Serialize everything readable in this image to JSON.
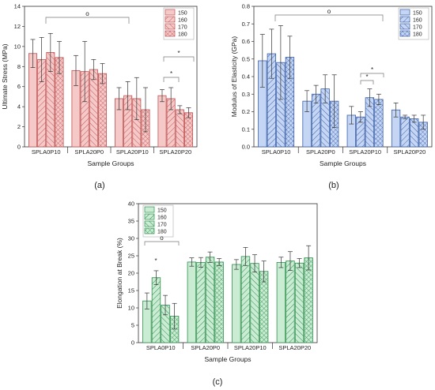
{
  "panel_labels": [
    "(a)",
    "(b)",
    "(c)"
  ],
  "legend_labels": [
    "150",
    "160",
    "170",
    "180"
  ],
  "colors": {
    "a_fill": "#f6c9c9",
    "a_edge": "#c05454",
    "b_fill": "#c5d6f4",
    "b_edge": "#3a5fa8",
    "c_fill": "#c9ecd3",
    "c_edge": "#2f8f4e"
  },
  "chart_data": [
    {
      "type": "bar",
      "panel": "(a)",
      "categories": [
        "SPLA0P10",
        "SPLA20P0",
        "SPLA20P10",
        "SPLA20P20"
      ],
      "xlabel": "Sample Groups",
      "ylabel": "Ultimate Stress (MPa)",
      "ylim": [
        0,
        14
      ],
      "yticks": [
        0,
        2,
        4,
        6,
        8,
        10,
        12,
        14
      ],
      "legend_position": "top-right",
      "series": [
        {
          "name": "150",
          "values": [
            9.3,
            7.6,
            4.8,
            5.1
          ],
          "errors": [
            1.4,
            1.5,
            1.1,
            0.6
          ]
        },
        {
          "name": "160",
          "values": [
            8.7,
            7.5,
            5.1,
            4.8
          ],
          "errors": [
            2.2,
            3.0,
            1.4,
            1.1
          ]
        },
        {
          "name": "170",
          "values": [
            9.4,
            7.7,
            4.8,
            3.7
          ],
          "errors": [
            1.9,
            1.0,
            2.1,
            0.4
          ]
        },
        {
          "name": "180",
          "values": [
            8.9,
            7.3,
            3.7,
            3.4
          ],
          "errors": [
            1.6,
            1.0,
            2.2,
            0.5
          ]
        }
      ],
      "annotations": [
        "o",
        "*",
        "*"
      ]
    },
    {
      "type": "bar",
      "panel": "(b)",
      "categories": [
        "SPLA0P10",
        "SPLA20P0",
        "SPLA20P10",
        "SPLA20P20"
      ],
      "xlabel": "Sample Groups",
      "ylabel": "Modulus of Elasticity (GPa)",
      "ylim": [
        0,
        0.8
      ],
      "yticks": [
        0,
        0.1,
        0.2,
        0.3,
        0.4,
        0.5,
        0.6,
        0.7,
        0.8
      ],
      "legend_position": "top-right",
      "series": [
        {
          "name": "150",
          "values": [
            0.49,
            0.26,
            0.18,
            0.21
          ],
          "errors": [
            0.15,
            0.06,
            0.05,
            0.04
          ]
        },
        {
          "name": "160",
          "values": [
            0.53,
            0.3,
            0.17,
            0.17
          ],
          "errors": [
            0.14,
            0.05,
            0.03,
            0.01
          ]
        },
        {
          "name": "170",
          "values": [
            0.48,
            0.33,
            0.28,
            0.16
          ],
          "errors": [
            0.21,
            0.08,
            0.05,
            0.02
          ]
        },
        {
          "name": "180",
          "values": [
            0.51,
            0.26,
            0.27,
            0.14
          ],
          "errors": [
            0.12,
            0.15,
            0.03,
            0.04
          ]
        }
      ],
      "annotations": [
        "o",
        "*",
        "*"
      ]
    },
    {
      "type": "bar",
      "panel": "(c)",
      "categories": [
        "SPLA0P10",
        "SPLA20P0",
        "SPLA20P10",
        "SPLA20P20"
      ],
      "xlabel": "Sample Groups",
      "ylabel": "Elongation at Break (%)",
      "ylim": [
        0,
        40
      ],
      "yticks": [
        0,
        5,
        10,
        15,
        20,
        25,
        30,
        35,
        40
      ],
      "legend_position": "top-left",
      "series": [
        {
          "name": "150",
          "values": [
            12.0,
            23.2,
            22.5,
            23.1
          ],
          "errors": [
            2.3,
            1.2,
            1.4,
            1.5
          ]
        },
        {
          "name": "160",
          "values": [
            18.7,
            23.1,
            24.8,
            23.5
          ],
          "errors": [
            2.0,
            1.4,
            2.6,
            2.7
          ]
        },
        {
          "name": "170",
          "values": [
            10.8,
            24.6,
            22.8,
            22.9
          ],
          "errors": [
            2.8,
            1.5,
            2.5,
            1.3
          ]
        },
        {
          "name": "180",
          "values": [
            7.6,
            23.2,
            20.5,
            24.4
          ],
          "errors": [
            3.7,
            1.0,
            3.0,
            3.5
          ]
        }
      ],
      "annotations": [
        "o",
        "*"
      ]
    }
  ]
}
